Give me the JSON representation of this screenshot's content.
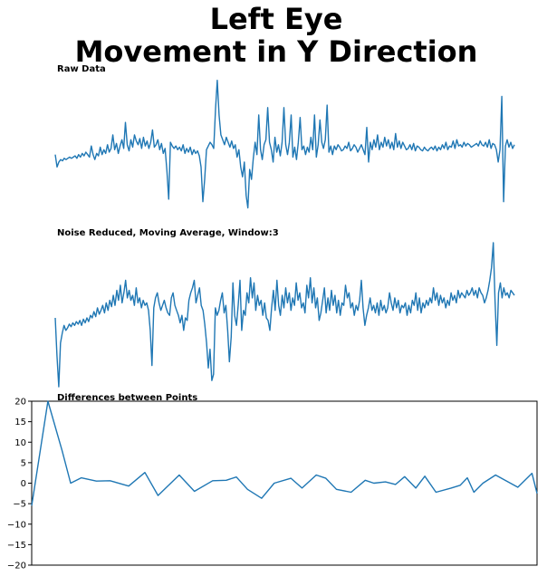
{
  "figure": {
    "title_line1": "Left Eye",
    "title_line2": "Movement in Y Direction"
  },
  "chart_data": [
    {
      "type": "line",
      "title": "Raw Data",
      "axes_visible": false,
      "color": "#1f77b4",
      "ylim": [
        -60,
        60
      ],
      "values": [
        -2,
        -12,
        -8,
        -6,
        -7,
        -5,
        -6,
        -5,
        -4,
        -5,
        -4,
        -3,
        -5,
        -2,
        -4,
        -1,
        -3,
        0,
        -2,
        -4,
        5,
        -2,
        -6,
        -1,
        -3,
        4,
        -2,
        2,
        -1,
        6,
        0,
        3,
        14,
        2,
        7,
        -1,
        5,
        10,
        3,
        24,
        6,
        1,
        10,
        4,
        14,
        9,
        6,
        11,
        3,
        12,
        5,
        9,
        3,
        8,
        18,
        4,
        6,
        10,
        2,
        7,
        -1,
        3,
        -15,
        -38,
        8,
        5,
        3,
        5,
        2,
        4,
        1,
        6,
        -1,
        3,
        0,
        4,
        -2,
        2,
        -1,
        1,
        -3,
        -12,
        -40,
        -22,
        2,
        5,
        8,
        6,
        3,
        35,
        58,
        30,
        14,
        10,
        6,
        12,
        8,
        4,
        9,
        3,
        6,
        -4,
        2,
        -12,
        -20,
        -8,
        -35,
        -45,
        -14,
        -22,
        -5,
        8,
        -2,
        30,
        2,
        -6,
        6,
        10,
        36,
        8,
        2,
        -8,
        12,
        0,
        6,
        -3,
        8,
        36,
        6,
        -2,
        8,
        30,
        -4,
        4,
        -6,
        8,
        28,
        2,
        5,
        -2,
        4,
        0,
        12,
        2,
        30,
        -4,
        6,
        26,
        8,
        3,
        10,
        38,
        0,
        5,
        -2,
        5,
        2,
        6,
        4,
        1,
        2,
        5,
        3,
        8,
        1,
        3,
        6,
        4,
        0,
        3,
        6,
        2,
        -2,
        20,
        -8,
        8,
        2,
        10,
        4,
        14,
        2,
        8,
        4,
        12,
        5,
        10,
        3,
        8,
        2,
        15,
        4,
        9,
        3,
        8,
        5,
        2,
        3,
        6,
        2,
        7,
        1,
        5,
        4,
        2,
        1,
        4,
        2,
        1,
        3,
        4,
        2,
        5,
        1,
        4,
        2,
        6,
        3,
        8,
        2,
        5,
        4,
        9,
        3,
        10,
        5,
        6,
        4,
        8,
        5,
        7,
        6,
        4,
        5,
        6,
        7,
        5,
        9,
        6,
        5,
        8,
        4,
        10,
        3,
        7,
        6,
        2,
        -8,
        2,
        45,
        -40,
        5,
        10,
        4,
        8,
        3,
        6
      ]
    },
    {
      "type": "line",
      "title": "Noise Reduced, Moving Average, Window:3",
      "axes_visible": false,
      "color": "#1f77b4",
      "ylim": [
        -60,
        60
      ],
      "values": [
        0,
        -30,
        -55,
        -20,
        -12,
        -6,
        -10,
        -8,
        -5,
        -7,
        -4,
        -6,
        -3,
        -5,
        -2,
        -6,
        -1,
        -4,
        0,
        -3,
        2,
        0,
        5,
        1,
        8,
        3,
        6,
        10,
        4,
        12,
        6,
        14,
        9,
        18,
        10,
        22,
        14,
        26,
        12,
        20,
        30,
        16,
        22,
        14,
        18,
        10,
        24,
        12,
        16,
        8,
        14,
        10,
        12,
        6,
        -10,
        -38,
        8,
        16,
        20,
        12,
        6,
        10,
        14,
        8,
        4,
        2,
        16,
        20,
        10,
        6,
        2,
        -4,
        2,
        -10,
        0,
        -2,
        14,
        20,
        24,
        30,
        12,
        18,
        24,
        10,
        6,
        -5,
        -20,
        -40,
        -25,
        -50,
        -45,
        8,
        2,
        6,
        14,
        20,
        4,
        10,
        -10,
        -35,
        -15,
        28,
        2,
        -6,
        10,
        30,
        -10,
        6,
        2,
        20,
        12,
        32,
        16,
        28,
        6,
        18,
        10,
        14,
        2,
        12,
        0,
        -2,
        -10,
        8,
        22,
        6,
        30,
        10,
        2,
        18,
        8,
        24,
        12,
        20,
        6,
        16,
        10,
        28,
        14,
        20,
        8,
        12,
        4,
        26,
        16,
        32,
        12,
        24,
        8,
        16,
        -2,
        4,
        14,
        24,
        4,
        16,
        6,
        22,
        10,
        18,
        4,
        14,
        2,
        12,
        10,
        26,
        16,
        20,
        8,
        12,
        2,
        10,
        6,
        14,
        30,
        8,
        -6,
        2,
        8,
        16,
        6,
        10,
        4,
        12,
        2,
        14,
        6,
        10,
        4,
        8,
        20,
        12,
        6,
        16,
        8,
        14,
        4,
        10,
        8,
        12,
        2,
        10,
        4,
        14,
        10,
        20,
        6,
        16,
        4,
        12,
        8,
        14,
        10,
        16,
        12,
        24,
        14,
        20,
        10,
        18,
        12,
        16,
        8,
        14,
        10,
        20,
        14,
        18,
        12,
        22,
        16,
        20,
        18,
        16,
        22,
        18,
        20,
        24,
        18,
        22,
        16,
        24,
        20,
        18,
        12,
        16,
        22,
        30,
        40,
        60,
        14,
        -22,
        20,
        28,
        16,
        24,
        18,
        20,
        16,
        22,
        20,
        18
      ]
    },
    {
      "type": "line",
      "title": "Differences between Points",
      "color": "#1f77b4",
      "xlim": [
        0,
        1
      ],
      "ylim": [
        -20,
        20
      ],
      "yticks": [
        "20",
        "15",
        "10",
        "5",
        "0",
        "−5",
        "−10",
        "−15",
        "−20"
      ],
      "x": [
        0.0,
        0.032,
        0.06,
        0.077,
        0.098,
        0.128,
        0.155,
        0.192,
        0.224,
        0.25,
        0.292,
        0.322,
        0.358,
        0.385,
        0.405,
        0.427,
        0.455,
        0.48,
        0.513,
        0.535,
        0.563,
        0.582,
        0.603,
        0.632,
        0.66,
        0.677,
        0.7,
        0.72,
        0.738,
        0.76,
        0.778,
        0.8,
        0.83,
        0.848,
        0.862,
        0.875,
        0.893,
        0.918,
        0.94,
        0.962,
        0.99,
        1.0
      ],
      "values": [
        -5.5,
        20,
        8,
        0,
        1.3,
        0.5,
        0.6,
        -0.7,
        2.6,
        -3,
        2,
        -2,
        0.6,
        0.7,
        1.5,
        -1.5,
        -3.7,
        0,
        1.2,
        -1.2,
        2,
        1.2,
        -1.5,
        -2.2,
        0.7,
        0,
        0.3,
        -0.3,
        1.6,
        -1.2,
        1.7,
        -2.2,
        -1.2,
        -0.5,
        1.3,
        -2.2,
        0,
        2,
        0.5,
        -1,
        2.4,
        -2.5
      ]
    }
  ]
}
